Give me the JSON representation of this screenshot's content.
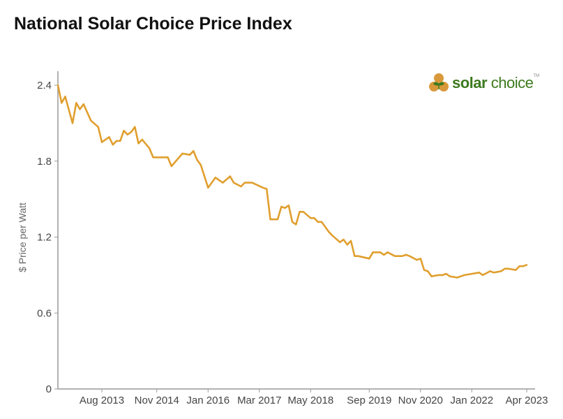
{
  "title": "National Solar Choice Price Index",
  "logo": {
    "text_bold": "solar",
    "text_light": "choice",
    "tm": "TM",
    "colors": {
      "orb": "#d9993a",
      "leaf": "#3d7a1e"
    }
  },
  "chart_data": {
    "type": "line",
    "title": "National Solar Choice Price Index",
    "xlabel": "",
    "ylabel": "$ Price per Watt",
    "ylim": [
      0,
      2.4
    ],
    "xlim": [
      "2012-08",
      "2023-04"
    ],
    "yticks": [
      "0",
      "0.6",
      "1.2",
      "1.8",
      "2.4"
    ],
    "xticks": [
      {
        "date": "2013-08",
        "label": "Aug 2013"
      },
      {
        "date": "2014-11",
        "label": "Nov 2014"
      },
      {
        "date": "2016-01",
        "label": "Jan 2016"
      },
      {
        "date": "2017-03",
        "label": "Mar 2017"
      },
      {
        "date": "2018-05",
        "label": "May 2018"
      },
      {
        "date": "2019-09",
        "label": "Sep 2019"
      },
      {
        "date": "2020-11",
        "label": "Nov 2020"
      },
      {
        "date": "2022-01",
        "label": "Jan 2022"
      },
      {
        "date": "2023-04",
        "label": "Apr 2023"
      }
    ],
    "grid": false,
    "line_color": "#e09f2e",
    "series": [
      {
        "points": [
          [
            "2012-08",
            2.4
          ],
          [
            "2012-09",
            2.26
          ],
          [
            "2012-10",
            2.31
          ],
          [
            "2012-12",
            2.1
          ],
          [
            "2013-01",
            2.26
          ],
          [
            "2013-02",
            2.21
          ],
          [
            "2013-03",
            2.25
          ],
          [
            "2013-05",
            2.12
          ],
          [
            "2013-07",
            2.07
          ],
          [
            "2013-08",
            1.95
          ],
          [
            "2013-10",
            1.99
          ],
          [
            "2013-11",
            1.93
          ],
          [
            "2013-12",
            1.96
          ],
          [
            "2014-01",
            1.96
          ],
          [
            "2014-02",
            2.04
          ],
          [
            "2014-03",
            2.01
          ],
          [
            "2014-04",
            2.03
          ],
          [
            "2014-05",
            2.07
          ],
          [
            "2014-06",
            1.94
          ],
          [
            "2014-07",
            1.97
          ],
          [
            "2014-09",
            1.9
          ],
          [
            "2014-10",
            1.83
          ],
          [
            "2015-02",
            1.83
          ],
          [
            "2015-03",
            1.76
          ],
          [
            "2015-06",
            1.86
          ],
          [
            "2015-08",
            1.85
          ],
          [
            "2015-09",
            1.88
          ],
          [
            "2015-10",
            1.81
          ],
          [
            "2015-11",
            1.77
          ],
          [
            "2016-01",
            1.59
          ],
          [
            "2016-03",
            1.67
          ],
          [
            "2016-05",
            1.63
          ],
          [
            "2016-07",
            1.68
          ],
          [
            "2016-08",
            1.63
          ],
          [
            "2016-10",
            1.6
          ],
          [
            "2016-11",
            1.63
          ],
          [
            "2017-01",
            1.63
          ],
          [
            "2017-04",
            1.59
          ],
          [
            "2017-05",
            1.58
          ],
          [
            "2017-06",
            1.34
          ],
          [
            "2017-08",
            1.34
          ],
          [
            "2017-09",
            1.44
          ],
          [
            "2017-10",
            1.43
          ],
          [
            "2017-11",
            1.45
          ],
          [
            "2017-12",
            1.32
          ],
          [
            "2018-01",
            1.3
          ],
          [
            "2018-02",
            1.4
          ],
          [
            "2018-03",
            1.4
          ],
          [
            "2018-05",
            1.35
          ],
          [
            "2018-06",
            1.35
          ],
          [
            "2018-07",
            1.32
          ],
          [
            "2018-08",
            1.32
          ],
          [
            "2018-10",
            1.24
          ],
          [
            "2018-11",
            1.21
          ],
          [
            "2019-01",
            1.16
          ],
          [
            "2019-02",
            1.18
          ],
          [
            "2019-03",
            1.14
          ],
          [
            "2019-04",
            1.17
          ],
          [
            "2019-05",
            1.05
          ],
          [
            "2019-06",
            1.05
          ],
          [
            "2019-09",
            1.03
          ],
          [
            "2019-10",
            1.08
          ],
          [
            "2019-12",
            1.08
          ],
          [
            "2020-01",
            1.06
          ],
          [
            "2020-02",
            1.08
          ],
          [
            "2020-04",
            1.05
          ],
          [
            "2020-06",
            1.05
          ],
          [
            "2020-07",
            1.06
          ],
          [
            "2020-08",
            1.05
          ],
          [
            "2020-10",
            1.02
          ],
          [
            "2020-11",
            1.03
          ],
          [
            "2020-12",
            0.94
          ],
          [
            "2021-01",
            0.93
          ],
          [
            "2021-02",
            0.89
          ],
          [
            "2021-04",
            0.9
          ],
          [
            "2021-05",
            0.9
          ],
          [
            "2021-06",
            0.91
          ],
          [
            "2021-07",
            0.89
          ],
          [
            "2021-09",
            0.88
          ],
          [
            "2021-10",
            0.89
          ],
          [
            "2021-11",
            0.9
          ],
          [
            "2022-01",
            0.91
          ],
          [
            "2022-03",
            0.92
          ],
          [
            "2022-04",
            0.9
          ],
          [
            "2022-06",
            0.93
          ],
          [
            "2022-07",
            0.92
          ],
          [
            "2022-09",
            0.93
          ],
          [
            "2022-10",
            0.95
          ],
          [
            "2022-11",
            0.95
          ],
          [
            "2023-01",
            0.94
          ],
          [
            "2023-02",
            0.97
          ],
          [
            "2023-03",
            0.97
          ],
          [
            "2023-04",
            0.98
          ]
        ]
      }
    ]
  }
}
